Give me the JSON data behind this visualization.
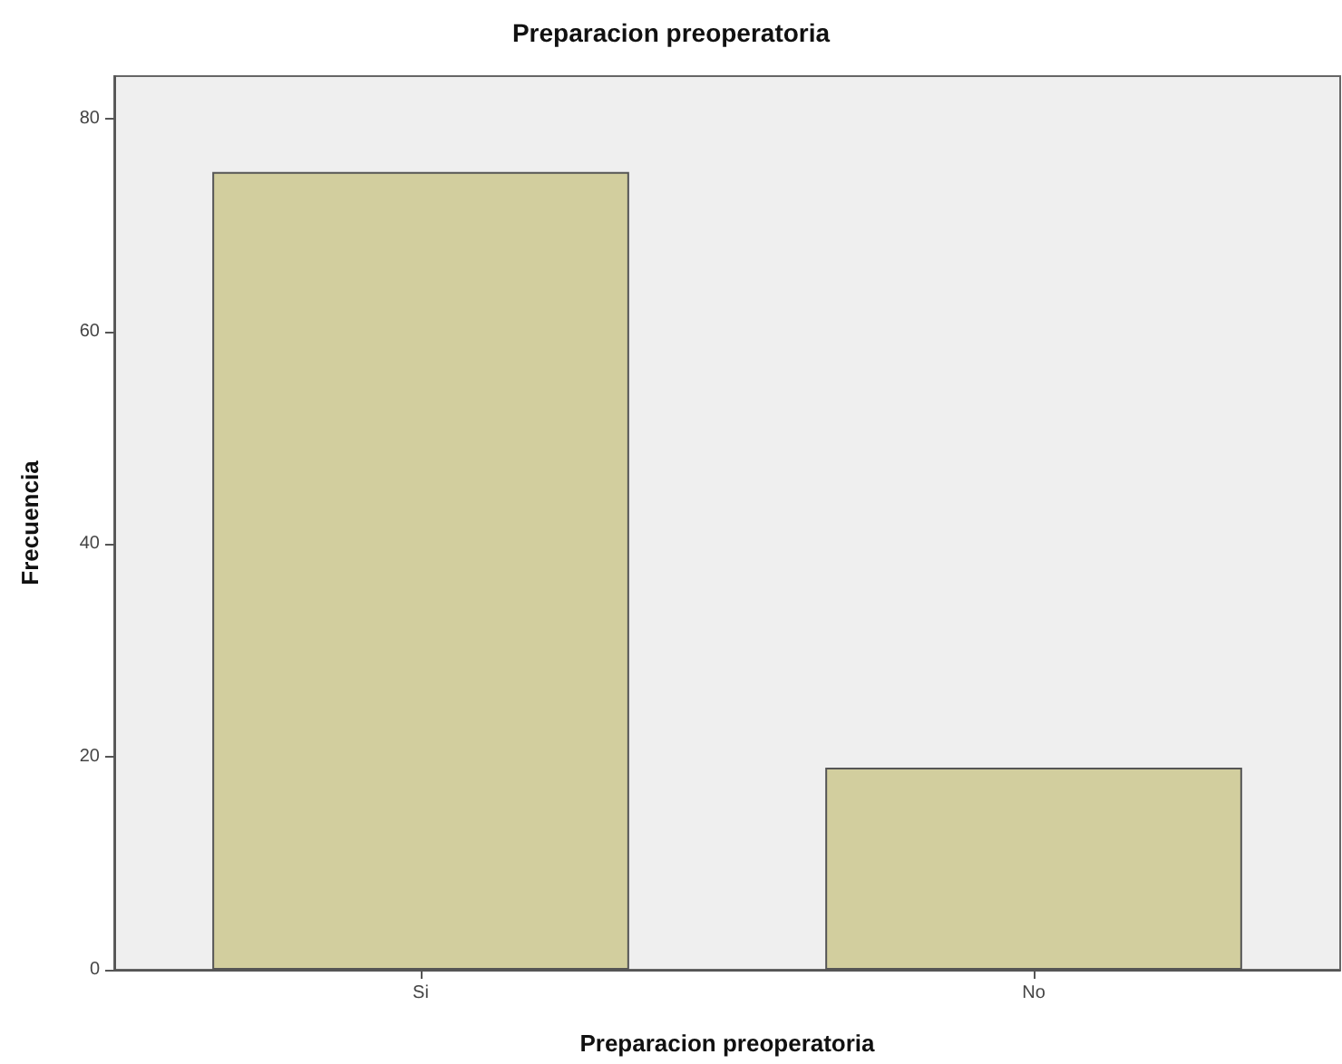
{
  "chart_data": {
    "type": "bar",
    "title": "Preparacion preoperatoria",
    "xlabel": "Preparacion preoperatoria",
    "ylabel": "Frecuencia",
    "categories": [
      "Si",
      "No"
    ],
    "values": [
      75,
      19
    ],
    "color": "#d2ce9e",
    "ylim": [
      0,
      84
    ],
    "yticks": [
      0,
      20,
      40,
      60,
      80
    ],
    "grid": false
  }
}
